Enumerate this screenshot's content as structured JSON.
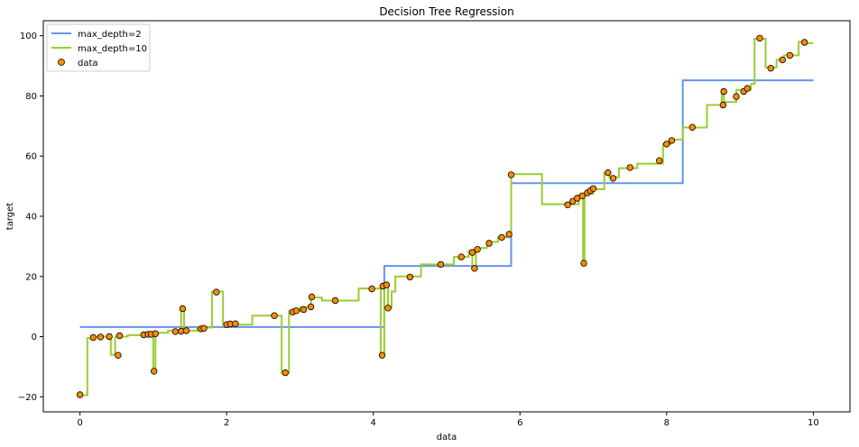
{
  "chart_data": {
    "type": "line",
    "title": "Decision Tree Regression",
    "xlabel": "data",
    "ylabel": "target",
    "xlim": [
      -0.5,
      10.5
    ],
    "ylim": [
      -25,
      105
    ],
    "xticks": [
      0,
      2,
      4,
      6,
      8,
      10
    ],
    "yticks": [
      -20,
      0,
      20,
      40,
      60,
      80,
      100
    ],
    "grid": false,
    "legend_position": "top-left",
    "series": [
      {
        "name": "max_depth=2",
        "kind": "step",
        "color": "#6495ed",
        "points": [
          [
            0,
            3.2
          ],
          [
            4.15,
            3.2
          ],
          [
            4.15,
            23.5
          ],
          [
            5.88,
            23.5
          ],
          [
            5.88,
            51
          ],
          [
            8.22,
            51
          ],
          [
            8.22,
            85.2
          ],
          [
            10,
            85.2
          ]
        ]
      },
      {
        "name": "max_depth=10",
        "kind": "step",
        "color": "#9acd32",
        "points": [
          [
            0,
            -19.5
          ],
          [
            0.1,
            -19.5
          ],
          [
            0.1,
            -0.5
          ],
          [
            0.15,
            -0.5
          ],
          [
            0.15,
            0
          ],
          [
            0.42,
            0
          ],
          [
            0.42,
            -6
          ],
          [
            0.48,
            -6
          ],
          [
            0.48,
            0
          ],
          [
            0.65,
            0
          ],
          [
            0.65,
            0.5
          ],
          [
            0.85,
            0.5
          ],
          [
            0.85,
            1
          ],
          [
            1.0,
            1
          ],
          [
            1.0,
            -11.5
          ],
          [
            1.03,
            -11.5
          ],
          [
            1.03,
            1.3
          ],
          [
            1.2,
            1.3
          ],
          [
            1.2,
            2
          ],
          [
            1.38,
            2
          ],
          [
            1.38,
            9.5
          ],
          [
            1.42,
            9.5
          ],
          [
            1.42,
            2
          ],
          [
            1.6,
            2
          ],
          [
            1.6,
            3
          ],
          [
            1.8,
            3
          ],
          [
            1.8,
            15
          ],
          [
            1.95,
            15
          ],
          [
            1.95,
            4
          ],
          [
            2.35,
            4
          ],
          [
            2.35,
            7
          ],
          [
            2.75,
            7
          ],
          [
            2.75,
            -12
          ],
          [
            2.85,
            -12
          ],
          [
            2.85,
            8.5
          ],
          [
            3.0,
            8.5
          ],
          [
            3.0,
            9.8
          ],
          [
            3.15,
            9.8
          ],
          [
            3.15,
            13
          ],
          [
            3.3,
            13
          ],
          [
            3.3,
            12
          ],
          [
            3.8,
            12
          ],
          [
            3.8,
            16
          ],
          [
            4.1,
            16
          ],
          [
            4.1,
            -6
          ],
          [
            4.15,
            -6
          ],
          [
            4.15,
            17
          ],
          [
            4.2,
            17
          ],
          [
            4.2,
            9.5
          ],
          [
            4.25,
            9.5
          ],
          [
            4.25,
            15
          ],
          [
            4.3,
            15
          ],
          [
            4.3,
            20
          ],
          [
            4.65,
            20
          ],
          [
            4.65,
            24
          ],
          [
            5.1,
            24
          ],
          [
            5.1,
            26.5
          ],
          [
            5.3,
            26.5
          ],
          [
            5.3,
            28.5
          ],
          [
            5.35,
            28.5
          ],
          [
            5.35,
            22.8
          ],
          [
            5.4,
            22.8
          ],
          [
            5.4,
            29.5
          ],
          [
            5.55,
            29.5
          ],
          [
            5.55,
            31.5
          ],
          [
            5.7,
            31.5
          ],
          [
            5.7,
            33
          ],
          [
            5.82,
            33
          ],
          [
            5.82,
            34
          ],
          [
            5.88,
            34
          ],
          [
            5.88,
            54
          ],
          [
            6.3,
            54
          ],
          [
            6.3,
            44
          ],
          [
            6.8,
            44
          ],
          [
            6.8,
            47
          ],
          [
            6.86,
            47
          ],
          [
            6.86,
            24.5
          ],
          [
            6.88,
            24.5
          ],
          [
            6.88,
            47.5
          ],
          [
            7.0,
            47.5
          ],
          [
            7.0,
            49
          ],
          [
            7.15,
            49
          ],
          [
            7.15,
            54.5
          ],
          [
            7.22,
            54.5
          ],
          [
            7.22,
            53
          ],
          [
            7.35,
            53
          ],
          [
            7.35,
            56
          ],
          [
            7.6,
            56
          ],
          [
            7.6,
            57.5
          ],
          [
            7.95,
            57.5
          ],
          [
            7.95,
            64
          ],
          [
            8.05,
            64
          ],
          [
            8.05,
            65.5
          ],
          [
            8.22,
            65.5
          ],
          [
            8.22,
            69.5
          ],
          [
            8.55,
            69.5
          ],
          [
            8.55,
            77
          ],
          [
            8.75,
            77
          ],
          [
            8.75,
            82
          ],
          [
            8.78,
            82
          ],
          [
            8.78,
            78
          ],
          [
            8.95,
            78
          ],
          [
            8.95,
            82
          ],
          [
            9.15,
            82
          ],
          [
            9.15,
            84
          ],
          [
            9.2,
            84
          ],
          [
            9.2,
            99
          ],
          [
            9.35,
            99
          ],
          [
            9.35,
            89.5
          ],
          [
            9.5,
            89.5
          ],
          [
            9.5,
            92
          ],
          [
            9.6,
            92
          ],
          [
            9.6,
            93.5
          ],
          [
            9.8,
            93.5
          ],
          [
            9.8,
            98
          ],
          [
            9.9,
            98
          ],
          [
            9.9,
            97.5
          ],
          [
            10,
            97.5
          ]
        ]
      }
    ],
    "scatter": {
      "name": "data",
      "color": "#ff8c00",
      "edgecolor": "#000000",
      "points": [
        [
          0.0,
          -19.3
        ],
        [
          0.18,
          -0.3
        ],
        [
          0.28,
          -0.1
        ],
        [
          0.4,
          0.0
        ],
        [
          0.52,
          -6.2
        ],
        [
          0.54,
          0.3
        ],
        [
          0.87,
          0.6
        ],
        [
          0.93,
          0.8
        ],
        [
          0.97,
          0.8
        ],
        [
          1.01,
          -11.5
        ],
        [
          1.03,
          1.0
        ],
        [
          1.3,
          1.7
        ],
        [
          1.38,
          1.8
        ],
        [
          1.4,
          9.3
        ],
        [
          1.45,
          2.0
        ],
        [
          1.65,
          2.6
        ],
        [
          1.69,
          2.8
        ],
        [
          1.86,
          14.8
        ],
        [
          2.0,
          4.0
        ],
        [
          2.05,
          4.2
        ],
        [
          2.12,
          4.3
        ],
        [
          2.65,
          7.0
        ],
        [
          2.8,
          -12.0
        ],
        [
          2.9,
          8.2
        ],
        [
          2.95,
          8.6
        ],
        [
          3.05,
          9.0
        ],
        [
          3.15,
          9.9
        ],
        [
          3.16,
          13.2
        ],
        [
          3.48,
          12.0
        ],
        [
          3.98,
          15.9
        ],
        [
          4.12,
          -6.2
        ],
        [
          4.13,
          16.8
        ],
        [
          4.18,
          17.2
        ],
        [
          4.2,
          9.5
        ],
        [
          4.5,
          19.8
        ],
        [
          4.92,
          24.0
        ],
        [
          5.2,
          26.5
        ],
        [
          5.35,
          28.0
        ],
        [
          5.38,
          22.7
        ],
        [
          5.42,
          29.0
        ],
        [
          5.58,
          31.0
        ],
        [
          5.75,
          33.0
        ],
        [
          5.85,
          34.0
        ],
        [
          5.88,
          53.8
        ],
        [
          6.65,
          43.8
        ],
        [
          6.72,
          45.0
        ],
        [
          6.78,
          46.0
        ],
        [
          6.85,
          46.8
        ],
        [
          6.87,
          24.4
        ],
        [
          6.92,
          47.8
        ],
        [
          6.96,
          48.5
        ],
        [
          7.0,
          49.2
        ],
        [
          7.2,
          54.5
        ],
        [
          7.27,
          52.6
        ],
        [
          7.5,
          56.2
        ],
        [
          7.9,
          58.5
        ],
        [
          8.0,
          64.0
        ],
        [
          8.07,
          65.2
        ],
        [
          8.35,
          69.6
        ],
        [
          8.77,
          77.0
        ],
        [
          8.78,
          81.5
        ],
        [
          8.95,
          79.8
        ],
        [
          9.05,
          81.5
        ],
        [
          9.1,
          82.5
        ],
        [
          9.27,
          99.2
        ],
        [
          9.42,
          89.2
        ],
        [
          9.58,
          92.0
        ],
        [
          9.68,
          93.5
        ],
        [
          9.88,
          97.8
        ]
      ]
    }
  }
}
